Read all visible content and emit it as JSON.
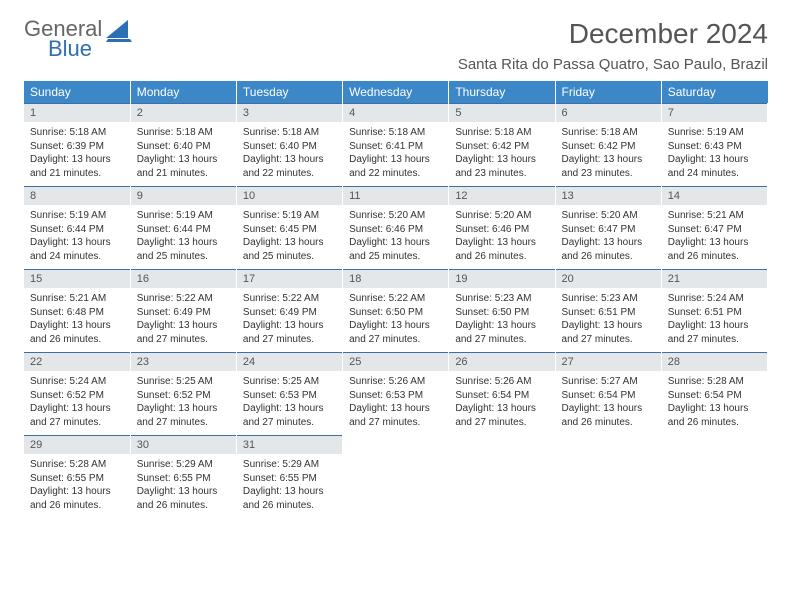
{
  "logo": {
    "general": "General",
    "blue": "Blue",
    "mark_color": "#2c6fb5"
  },
  "title": "December 2024",
  "location": "Santa Rita do Passa Quatro, Sao Paulo, Brazil",
  "columns": [
    "Sunday",
    "Monday",
    "Tuesday",
    "Wednesday",
    "Thursday",
    "Friday",
    "Saturday"
  ],
  "header_bg": "#3b87c8",
  "daynum_bg": "#e4e7ea",
  "rule_color": "#3b6fa5",
  "weeks": [
    [
      {
        "n": "1",
        "sr": "Sunrise: 5:18 AM",
        "ss": "Sunset: 6:39 PM",
        "d1": "Daylight: 13 hours",
        "d2": "and 21 minutes."
      },
      {
        "n": "2",
        "sr": "Sunrise: 5:18 AM",
        "ss": "Sunset: 6:40 PM",
        "d1": "Daylight: 13 hours",
        "d2": "and 21 minutes."
      },
      {
        "n": "3",
        "sr": "Sunrise: 5:18 AM",
        "ss": "Sunset: 6:40 PM",
        "d1": "Daylight: 13 hours",
        "d2": "and 22 minutes."
      },
      {
        "n": "4",
        "sr": "Sunrise: 5:18 AM",
        "ss": "Sunset: 6:41 PM",
        "d1": "Daylight: 13 hours",
        "d2": "and 22 minutes."
      },
      {
        "n": "5",
        "sr": "Sunrise: 5:18 AM",
        "ss": "Sunset: 6:42 PM",
        "d1": "Daylight: 13 hours",
        "d2": "and 23 minutes."
      },
      {
        "n": "6",
        "sr": "Sunrise: 5:18 AM",
        "ss": "Sunset: 6:42 PM",
        "d1": "Daylight: 13 hours",
        "d2": "and 23 minutes."
      },
      {
        "n": "7",
        "sr": "Sunrise: 5:19 AM",
        "ss": "Sunset: 6:43 PM",
        "d1": "Daylight: 13 hours",
        "d2": "and 24 minutes."
      }
    ],
    [
      {
        "n": "8",
        "sr": "Sunrise: 5:19 AM",
        "ss": "Sunset: 6:44 PM",
        "d1": "Daylight: 13 hours",
        "d2": "and 24 minutes."
      },
      {
        "n": "9",
        "sr": "Sunrise: 5:19 AM",
        "ss": "Sunset: 6:44 PM",
        "d1": "Daylight: 13 hours",
        "d2": "and 25 minutes."
      },
      {
        "n": "10",
        "sr": "Sunrise: 5:19 AM",
        "ss": "Sunset: 6:45 PM",
        "d1": "Daylight: 13 hours",
        "d2": "and 25 minutes."
      },
      {
        "n": "11",
        "sr": "Sunrise: 5:20 AM",
        "ss": "Sunset: 6:46 PM",
        "d1": "Daylight: 13 hours",
        "d2": "and 25 minutes."
      },
      {
        "n": "12",
        "sr": "Sunrise: 5:20 AM",
        "ss": "Sunset: 6:46 PM",
        "d1": "Daylight: 13 hours",
        "d2": "and 26 minutes."
      },
      {
        "n": "13",
        "sr": "Sunrise: 5:20 AM",
        "ss": "Sunset: 6:47 PM",
        "d1": "Daylight: 13 hours",
        "d2": "and 26 minutes."
      },
      {
        "n": "14",
        "sr": "Sunrise: 5:21 AM",
        "ss": "Sunset: 6:47 PM",
        "d1": "Daylight: 13 hours",
        "d2": "and 26 minutes."
      }
    ],
    [
      {
        "n": "15",
        "sr": "Sunrise: 5:21 AM",
        "ss": "Sunset: 6:48 PM",
        "d1": "Daylight: 13 hours",
        "d2": "and 26 minutes."
      },
      {
        "n": "16",
        "sr": "Sunrise: 5:22 AM",
        "ss": "Sunset: 6:49 PM",
        "d1": "Daylight: 13 hours",
        "d2": "and 27 minutes."
      },
      {
        "n": "17",
        "sr": "Sunrise: 5:22 AM",
        "ss": "Sunset: 6:49 PM",
        "d1": "Daylight: 13 hours",
        "d2": "and 27 minutes."
      },
      {
        "n": "18",
        "sr": "Sunrise: 5:22 AM",
        "ss": "Sunset: 6:50 PM",
        "d1": "Daylight: 13 hours",
        "d2": "and 27 minutes."
      },
      {
        "n": "19",
        "sr": "Sunrise: 5:23 AM",
        "ss": "Sunset: 6:50 PM",
        "d1": "Daylight: 13 hours",
        "d2": "and 27 minutes."
      },
      {
        "n": "20",
        "sr": "Sunrise: 5:23 AM",
        "ss": "Sunset: 6:51 PM",
        "d1": "Daylight: 13 hours",
        "d2": "and 27 minutes."
      },
      {
        "n": "21",
        "sr": "Sunrise: 5:24 AM",
        "ss": "Sunset: 6:51 PM",
        "d1": "Daylight: 13 hours",
        "d2": "and 27 minutes."
      }
    ],
    [
      {
        "n": "22",
        "sr": "Sunrise: 5:24 AM",
        "ss": "Sunset: 6:52 PM",
        "d1": "Daylight: 13 hours",
        "d2": "and 27 minutes."
      },
      {
        "n": "23",
        "sr": "Sunrise: 5:25 AM",
        "ss": "Sunset: 6:52 PM",
        "d1": "Daylight: 13 hours",
        "d2": "and 27 minutes."
      },
      {
        "n": "24",
        "sr": "Sunrise: 5:25 AM",
        "ss": "Sunset: 6:53 PM",
        "d1": "Daylight: 13 hours",
        "d2": "and 27 minutes."
      },
      {
        "n": "25",
        "sr": "Sunrise: 5:26 AM",
        "ss": "Sunset: 6:53 PM",
        "d1": "Daylight: 13 hours",
        "d2": "and 27 minutes."
      },
      {
        "n": "26",
        "sr": "Sunrise: 5:26 AM",
        "ss": "Sunset: 6:54 PM",
        "d1": "Daylight: 13 hours",
        "d2": "and 27 minutes."
      },
      {
        "n": "27",
        "sr": "Sunrise: 5:27 AM",
        "ss": "Sunset: 6:54 PM",
        "d1": "Daylight: 13 hours",
        "d2": "and 26 minutes."
      },
      {
        "n": "28",
        "sr": "Sunrise: 5:28 AM",
        "ss": "Sunset: 6:54 PM",
        "d1": "Daylight: 13 hours",
        "d2": "and 26 minutes."
      }
    ],
    [
      {
        "n": "29",
        "sr": "Sunrise: 5:28 AM",
        "ss": "Sunset: 6:55 PM",
        "d1": "Daylight: 13 hours",
        "d2": "and 26 minutes."
      },
      {
        "n": "30",
        "sr": "Sunrise: 5:29 AM",
        "ss": "Sunset: 6:55 PM",
        "d1": "Daylight: 13 hours",
        "d2": "and 26 minutes."
      },
      {
        "n": "31",
        "sr": "Sunrise: 5:29 AM",
        "ss": "Sunset: 6:55 PM",
        "d1": "Daylight: 13 hours",
        "d2": "and 26 minutes."
      },
      {
        "empty": true
      },
      {
        "empty": true
      },
      {
        "empty": true
      },
      {
        "empty": true
      }
    ]
  ]
}
